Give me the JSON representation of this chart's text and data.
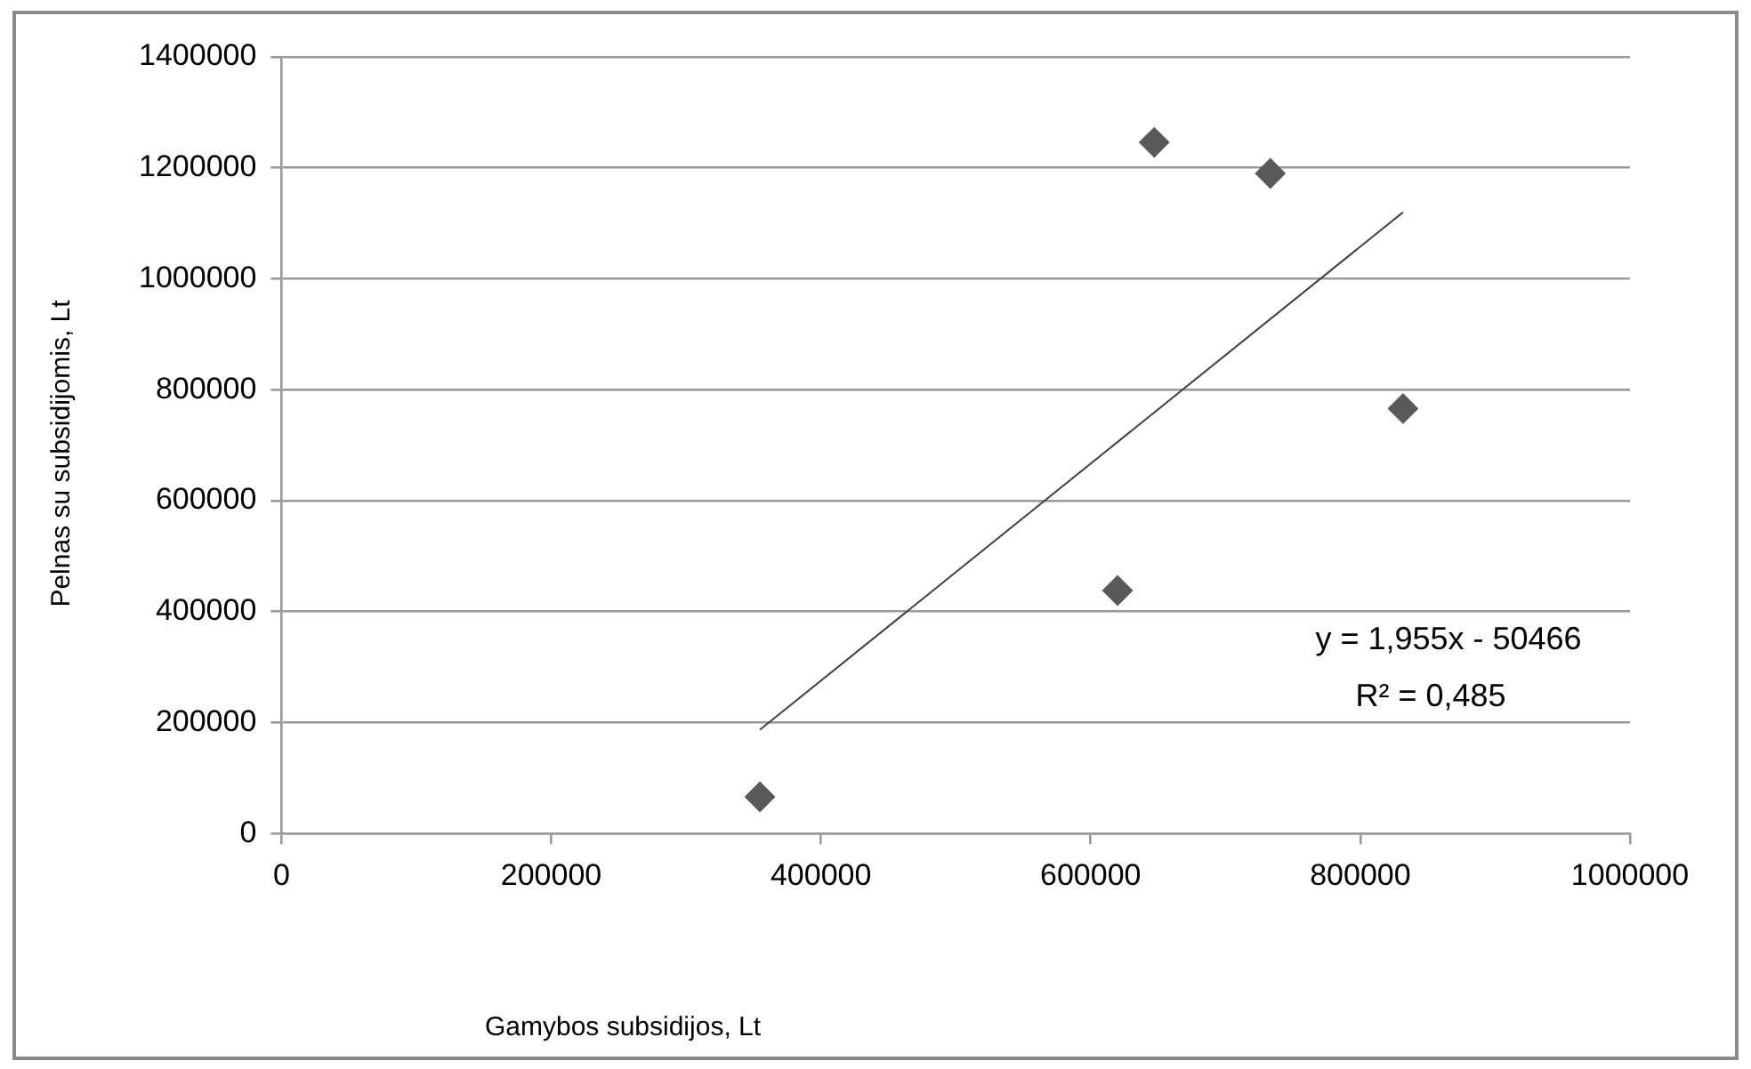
{
  "chart_data": {
    "type": "scatter",
    "xlabel": "Gamybos subsidijos, Lt",
    "ylabel": "Pelnas su subsidijomis, Lt",
    "x": [
      354800,
      620000,
      647200,
      733300,
      831700
    ],
    "series": [
      {
        "color": "#595959",
        "values": [
          66000,
          438000,
          1246000,
          1190000,
          766000
        ]
      },
      {
        "type": "line",
        "color": "#404040",
        "x": [
          354800,
          831700
        ],
        "values": [
          187000,
          1120000
        ],
        "marker": "none"
      }
    ],
    "xlim": [
      0,
      1000000
    ],
    "xticks": [
      0,
      200000,
      400000,
      600000,
      800000,
      1000000
    ],
    "ylim": [
      0,
      1400000
    ],
    "yticks": [
      0,
      200000,
      400000,
      600000,
      800000,
      1000000,
      1200000,
      1400000
    ],
    "grid": "y",
    "marker": "diamond",
    "legend": false,
    "annotations": [
      "y = 1,955x - 50466",
      "R² = 0,485"
    ]
  }
}
